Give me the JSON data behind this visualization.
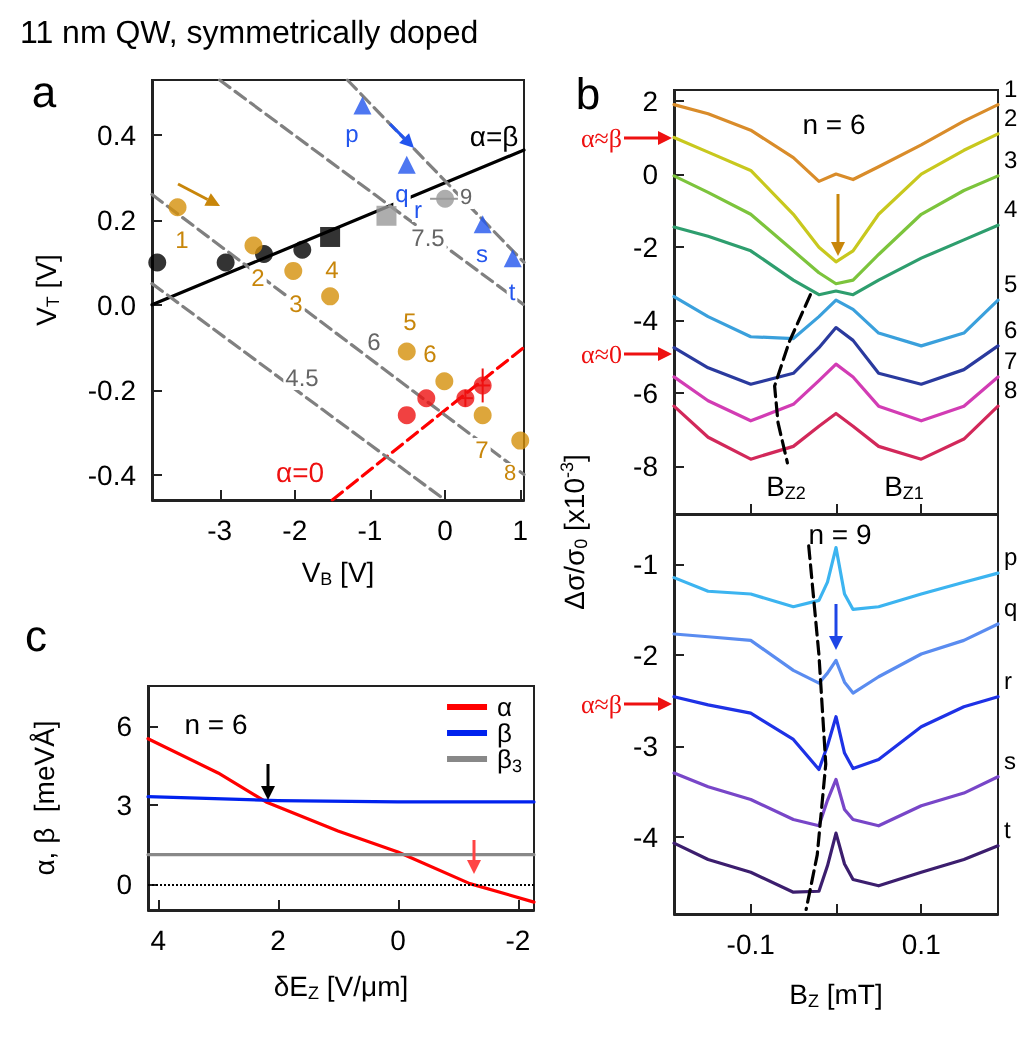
{
  "chart_data": [
    {
      "type": "scatter",
      "title": "11 nm QW, symmetrically doped",
      "xlabel": "V$_{B}$ [V]",
      "ylabel": "V$_{T}$ [V]",
      "xlim": [
        -3.9,
        1.05
      ],
      "ylim": [
        -0.46,
        0.53
      ],
      "xticks": [
        -3,
        -2,
        -1,
        0,
        1
      ],
      "yticks": [
        -0.4,
        -0.2,
        {
          "value": 0,
          "label": "0.0"
        },
        0.2,
        0.4
      ],
      "series": [
        {
          "type": "line",
          "color": "#000000",
          "x": [
            -3.9,
            1.05
          ],
          "values": [
            0,
            0.365
          ]
        },
        {
          "type": "line",
          "color": "#ff0000",
          "line_style": "dashed",
          "x": [
            -1.5,
            1.05
          ],
          "values": [
            -0.46,
            -0.1
          ]
        },
        {
          "type": "line",
          "color": "#808080",
          "line_style": "dashed",
          "x": [
            -3.9,
            0.0
          ],
          "values": [
            0.05,
            -0.46
          ]
        },
        {
          "type": "line",
          "color": "#808080",
          "line_style": "dashed",
          "x": [
            -3.9,
            1.05
          ],
          "values": [
            0.26,
            -0.4
          ]
        },
        {
          "type": "line",
          "color": "#808080",
          "line_style": "dashed",
          "x": [
            -3.0,
            1.05
          ],
          "values": [
            0.53,
            0.0
          ]
        },
        {
          "type": "line",
          "color": "#808080",
          "line_style": "dashed",
          "x": [
            -1.3,
            1.05
          ],
          "values": [
            0.53,
            0.1
          ]
        },
        {
          "color": "#000000",
          "marker": "circle",
          "x": [
            -3.83,
            -2.92
          ],
          "values": [
            0.1,
            0.1
          ]
        },
        {
          "color": "#000000",
          "marker": "circle",
          "x": [
            -2.41,
            -1.9
          ],
          "values": [
            0.12,
            0.13
          ]
        },
        {
          "color": "#000000",
          "marker": "square",
          "x": [
            -1.53
          ],
          "values": [
            0.16
          ]
        },
        {
          "color": "#999999",
          "marker": "square",
          "x": [
            -0.78
          ],
          "values": [
            0.21
          ]
        },
        {
          "color": "#999999",
          "marker": "circle",
          "x": [
            0.0
          ],
          "values": [
            0.25
          ],
          "xerrors": [
            0.2
          ]
        },
        {
          "color": "#d4900a",
          "marker": "circle",
          "x": [
            -3.56,
            -2.55,
            -2.02,
            -1.53,
            -0.51,
            -0.01,
            0.5,
            1.0
          ],
          "values": [
            0.23,
            0.14,
            0.08,
            0.02,
            -0.11,
            -0.18,
            -0.26,
            -0.32
          ]
        },
        {
          "color": "#2255ee",
          "marker": "triangle",
          "x": [
            -1.1,
            -0.51,
            0.5,
            0.9
          ],
          "values": [
            0.47,
            0.33,
            0.19,
            0.11
          ]
        },
        {
          "color": "#ee1111",
          "marker": "circle",
          "x": [
            -0.51,
            -0.25,
            0.27,
            0.5
          ],
          "values": [
            -0.26,
            -0.22,
            -0.22,
            -0.19
          ],
          "errors": [
            null,
            null,
            0.02,
            0.04
          ],
          "xerrors": [
            null,
            null,
            0.1,
            0.1
          ]
        }
      ],
      "annotations": [
        "a",
        "1",
        "2",
        "3",
        "4",
        "5",
        "6",
        "7",
        "8",
        "p",
        "q",
        "r",
        "s",
        "t",
        "4.5",
        "6",
        "7.5",
        "9",
        "α=β",
        "α=0"
      ]
    },
    {
      "type": "line",
      "ylabel": "Δσ/σ$_{0}$ [x10$^{-3}$]",
      "tick_labels": "y",
      "xlim": [
        -0.19,
        0.19
      ],
      "ylim": [
        -9.3,
        2.3
      ],
      "xticks": [
        -0.1,
        {
          "value": 0,
          "label": null
        },
        0.1
      ],
      "yticks": [
        -8,
        -6,
        -4,
        -2,
        0,
        2
      ],
      "x": [
        -0.19,
        -0.15,
        -0.1,
        -0.05,
        -0.02,
        0,
        0.02,
        0.05,
        0.1,
        0.15,
        0.19
      ],
      "series": [
        {
          "name": "1",
          "color": "#d98c2a",
          "values": [
            1.9,
            1.65,
            1.2,
            0.45,
            -0.2,
            0,
            -0.15,
            0.2,
            0.8,
            1.45,
            1.9
          ]
        },
        {
          "name": "2",
          "color": "#c8c81e",
          "values": [
            1.0,
            0.6,
            0.1,
            -1.1,
            -2.0,
            -2.4,
            -2.1,
            -1.1,
            0,
            0.65,
            1.1
          ]
        },
        {
          "name": "3",
          "color": "#7cc43c",
          "values": [
            -0.05,
            -0.5,
            -1.1,
            -2.1,
            -2.7,
            -3.0,
            -2.9,
            -2.2,
            -1.1,
            -0.45,
            -0.05
          ]
        },
        {
          "name": "4",
          "color": "#2e9e6e",
          "values": [
            -1.45,
            -1.7,
            -2.1,
            -2.9,
            -3.3,
            -3.2,
            -3.3,
            -2.9,
            -2.3,
            -1.8,
            -1.4
          ]
        },
        {
          "name": "5",
          "color": "#3aa0dc",
          "values": [
            -3.35,
            -3.9,
            -4.45,
            -4.5,
            -3.9,
            -3.45,
            -3.7,
            -4.35,
            -4.7,
            -4.35,
            -3.45
          ]
        },
        {
          "name": "6",
          "color": "#2a3a9e",
          "values": [
            -4.75,
            -5.3,
            -5.75,
            -5.45,
            -4.75,
            -4.2,
            -4.55,
            -5.45,
            -5.75,
            -5.35,
            -4.7
          ]
        },
        {
          "name": "7",
          "color": "#d23cb4",
          "values": [
            -5.55,
            -6.2,
            -6.75,
            -6.3,
            -5.65,
            -5.2,
            -5.55,
            -6.35,
            -6.75,
            -6.35,
            -5.55
          ]
        },
        {
          "name": "8",
          "color": "#d2285a",
          "values": [
            -6.35,
            -7.2,
            -7.8,
            -7.45,
            -6.9,
            -6.55,
            -6.9,
            -7.45,
            -7.8,
            -7.25,
            -6.35
          ]
        },
        {
          "color": "#000000",
          "line_style": "dashed",
          "x": [
            -0.03,
            -0.055,
            -0.072,
            -0.068,
            -0.057
          ],
          "values": [
            -3.3,
            -4.6,
            -5.8,
            -6.8,
            -7.9
          ]
        }
      ],
      "annotations": [
        "b",
        "n = 6",
        "B$_{Z2}$",
        "B$_{Z1}$",
        "α≈β",
        "α≈0"
      ]
    },
    {
      "type": "line",
      "xlabel": "B$_{Z}$ [mT]",
      "xlim": [
        -0.19,
        0.19
      ],
      "ylim": [
        -4.85,
        -0.45
      ],
      "xticks": [
        -0.1,
        {
          "value": 0,
          "label": null
        },
        0.1
      ],
      "yticks": [
        -4,
        -3,
        -2,
        -1
      ],
      "x": [
        -0.19,
        -0.15,
        -0.1,
        -0.05,
        -0.02,
        -0.01,
        0,
        0.01,
        0.02,
        0.05,
        0.1,
        0.15,
        0.19
      ],
      "series": [
        {
          "name": "p",
          "color": "#3cb4f0",
          "values": [
            -1.15,
            -1.3,
            -1.33,
            -1.47,
            -1.4,
            -1.2,
            -0.82,
            -1.33,
            -1.5,
            -1.47,
            -1.33,
            -1.2,
            -1.1
          ]
        },
        {
          "name": "q",
          "color": "#5a8cf0",
          "values": [
            -1.77,
            -1.8,
            -1.84,
            -2.17,
            -2.31,
            -2.2,
            -2.06,
            -2.3,
            -2.42,
            -2.24,
            -1.99,
            -1.84,
            -1.66
          ]
        },
        {
          "name": "r",
          "color": "#1e32e6",
          "values": [
            -2.46,
            -2.55,
            -2.64,
            -2.93,
            -3.26,
            -3.0,
            -2.68,
            -3.08,
            -3.25,
            -3.15,
            -2.79,
            -2.57,
            -2.46
          ]
        },
        {
          "name": "s",
          "color": "#7846c8",
          "values": [
            -3.3,
            -3.45,
            -3.59,
            -3.81,
            -3.88,
            -3.6,
            -3.37,
            -3.7,
            -3.81,
            -3.88,
            -3.66,
            -3.52,
            -3.34
          ]
        },
        {
          "name": "t",
          "color": "#3c1e6e",
          "values": [
            -4.07,
            -4.25,
            -4.39,
            -4.61,
            -4.6,
            -4.32,
            -3.96,
            -4.3,
            -4.47,
            -4.54,
            -4.39,
            -4.25,
            -4.1
          ]
        },
        {
          "color": "#000000",
          "line_style": "dashed",
          "x": [
            -0.032,
            -0.02,
            -0.012,
            -0.022,
            -0.035
          ],
          "values": [
            -0.8,
            -2.0,
            -3.2,
            -4.2,
            -4.8
          ]
        }
      ],
      "annotations": [
        "n = 9",
        "α≈β"
      ]
    },
    {
      "type": "line",
      "xlabel": "δE$_{Z}$ [V/μm]",
      "ylabel": "α, β  [meVÅ]",
      "xlim": [
        4.17,
        -2.27
      ],
      "ylim": [
        -1,
        7.5
      ],
      "xticks": [
        4,
        2,
        0,
        -2
      ],
      "yticks": [
        0,
        3,
        6
      ],
      "legend": "top right",
      "series": [
        {
          "name": "α",
          "color": "#ff0000",
          "x": [
            4.17,
            3,
            2.2,
            1,
            0,
            -1.2,
            -2.27
          ],
          "values": [
            5.5,
            4.2,
            3.1,
            2.0,
            1.2,
            0,
            -0.7
          ]
        },
        {
          "name": "β",
          "color": "#0022ee",
          "x": [
            4.17,
            2,
            0,
            -2.27
          ],
          "values": [
            3.3,
            3.15,
            3.1,
            3.1
          ]
        },
        {
          "name": "β$_{3}$",
          "color": "#888888",
          "x": [
            4.17,
            -2.27
          ],
          "values": [
            1.1,
            1.1
          ]
        }
      ],
      "ref_lines": [
        {
          "axis": "y",
          "value": 0,
          "color": "#000000",
          "line_style": "dotted"
        }
      ],
      "annotations": [
        "c",
        "n = 6"
      ]
    }
  ]
}
